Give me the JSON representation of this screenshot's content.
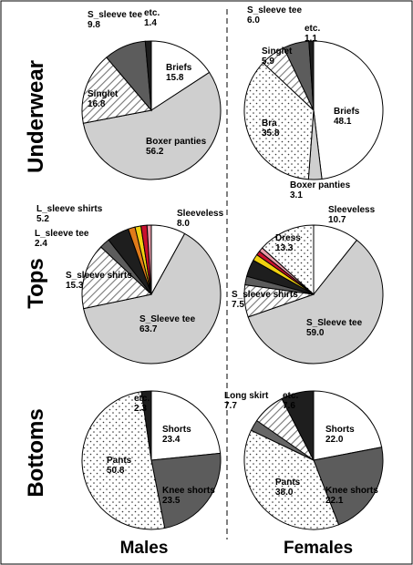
{
  "row_labels": [
    "Underwear",
    "Tops",
    "Bottoms"
  ],
  "column_labels": [
    "Males",
    "Females"
  ],
  "chart_data": [
    {
      "type": "pie",
      "row": "Underwear",
      "column": "Males",
      "slices": [
        {
          "label": "Briefs",
          "value": 15.8,
          "fill": "white"
        },
        {
          "label": "Boxer panties",
          "value": 56.2,
          "fill": "lightgray"
        },
        {
          "label": "Singlet",
          "value": 16.8,
          "fill": "hatch"
        },
        {
          "label": "S_sleeve tee",
          "value": 9.8,
          "fill": "darkgray"
        },
        {
          "label": "etc.",
          "value": 1.4,
          "fill": "black"
        }
      ]
    },
    {
      "type": "pie",
      "row": "Underwear",
      "column": "Females",
      "slices": [
        {
          "label": "Briefs",
          "value": 48.1,
          "fill": "white"
        },
        {
          "label": "Boxer panties",
          "value": 3.1,
          "fill": "lightgray"
        },
        {
          "label": "Bra",
          "value": 35.8,
          "fill": "dots"
        },
        {
          "label": "Singlet",
          "value": 5.9,
          "fill": "hatch"
        },
        {
          "label": "S_sleeve tee",
          "value": 6.0,
          "fill": "darkgray"
        },
        {
          "label": "etc.",
          "value": 1.1,
          "fill": "black"
        }
      ]
    },
    {
      "type": "pie",
      "row": "Tops",
      "column": "Males",
      "slices": [
        {
          "label": "Sleeveless",
          "value": 8.0,
          "fill": "white"
        },
        {
          "label": "S_Sleeve tee",
          "value": 63.7,
          "fill": "lightgray"
        },
        {
          "label": "S_sleeve shirts",
          "value": 15.3,
          "fill": "hatch"
        },
        {
          "label": "L_sleeve tee",
          "value": 2.4,
          "fill": "darkgray"
        },
        {
          "label": "L_sleeve shirts",
          "value": 5.2,
          "fill": "black"
        },
        {
          "label": "",
          "value": 1.6,
          "fill": "#e07b1a"
        },
        {
          "label": "",
          "value": 1.4,
          "fill": "#f0d010"
        },
        {
          "label": "",
          "value": 1.4,
          "fill": "#c8102e"
        },
        {
          "label": "",
          "value": 1.0,
          "fill": "#e89aa8"
        }
      ]
    },
    {
      "type": "pie",
      "row": "Tops",
      "column": "Females",
      "slices": [
        {
          "label": "Sleeveless",
          "value": 10.7,
          "fill": "white"
        },
        {
          "label": "S_Sleeve tee",
          "value": 59.0,
          "fill": "lightgray"
        },
        {
          "label": "S_sleeve shirts",
          "value": 7.5,
          "fill": "hatch"
        },
        {
          "label": "",
          "value": 2.0,
          "fill": "darkgray"
        },
        {
          "label": "",
          "value": 4.0,
          "fill": "black"
        },
        {
          "label": "",
          "value": 1.5,
          "fill": "#f0d010"
        },
        {
          "label": "",
          "value": 1.0,
          "fill": "#c8102e"
        },
        {
          "label": "",
          "value": 1.0,
          "fill": "#e89aa8"
        },
        {
          "label": "Dress",
          "value": 13.3,
          "fill": "dots"
        }
      ]
    },
    {
      "type": "pie",
      "row": "Bottoms",
      "column": "Males",
      "slices": [
        {
          "label": "Shorts",
          "value": 23.4,
          "fill": "white"
        },
        {
          "label": "Knee shorts",
          "value": 23.5,
          "fill": "darkgray"
        },
        {
          "label": "Pants",
          "value": 50.8,
          "fill": "dots"
        },
        {
          "label": "etc.",
          "value": 2.3,
          "fill": "black"
        }
      ]
    },
    {
      "type": "pie",
      "row": "Bottoms",
      "column": "Females",
      "slices": [
        {
          "label": "Shorts",
          "value": 22.0,
          "fill": "white"
        },
        {
          "label": "Knee shorts",
          "value": 22.1,
          "fill": "darkgray"
        },
        {
          "label": "Pants",
          "value": 38.0,
          "fill": "dots"
        },
        {
          "label": "",
          "value": 2.6,
          "fill": "slate"
        },
        {
          "label": "Long skirt",
          "value": 7.7,
          "fill": "hatch"
        },
        {
          "label": "etc.",
          "value": 7.6,
          "fill": "black"
        }
      ]
    }
  ]
}
